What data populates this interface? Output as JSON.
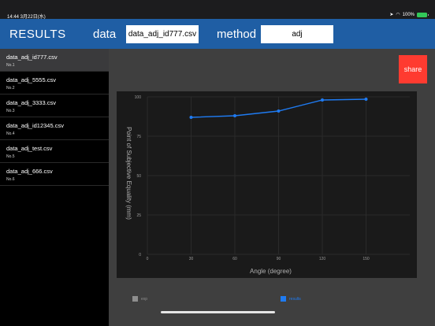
{
  "status": {
    "time_date": "14:44  3月22日(水)",
    "battery_text": "100%"
  },
  "header": {
    "title": "RESULTS",
    "data_label": "data",
    "data_value": "data_adj_id777.csv",
    "method_label": "method",
    "method_value": "adj"
  },
  "sidebar": {
    "items": [
      {
        "name": "data_adj_id777.csv",
        "no": "No.1",
        "selected": true
      },
      {
        "name": "data_adj_5555.csv",
        "no": "No.2",
        "selected": false
      },
      {
        "name": "data_adj_3333.csv",
        "no": "No.3",
        "selected": false
      },
      {
        "name": "data_adj_id12345.csv",
        "no": "No.4",
        "selected": false
      },
      {
        "name": "data_adj_test.csv",
        "no": "No.5",
        "selected": false
      },
      {
        "name": "data_adj_666.csv",
        "no": "No.6",
        "selected": false
      }
    ]
  },
  "share_label": "share",
  "chart_data": {
    "type": "line",
    "xlabel": "Angle (degree)",
    "ylabel": "Point of Subjective Equality (mm)",
    "x_ticks": [
      0,
      30,
      60,
      90,
      120,
      150
    ],
    "y_ticks": [
      0,
      25,
      50,
      75,
      100
    ],
    "xlim": [
      0,
      180
    ],
    "ylim": [
      0,
      100
    ],
    "grid": true,
    "legend": "bottom",
    "series": [
      {
        "name": "exp",
        "color": "#8e8e8e",
        "x": [],
        "y": []
      },
      {
        "name": "results",
        "color": "#1f7bf2",
        "x": [
          30,
          60,
          90,
          120,
          150
        ],
        "y": [
          87,
          88,
          91,
          98,
          98.5
        ]
      }
    ]
  },
  "colors": {
    "header_bg": "#1f5ea4",
    "accent": "#1f7bf2",
    "share_bg": "#ff3b30"
  }
}
